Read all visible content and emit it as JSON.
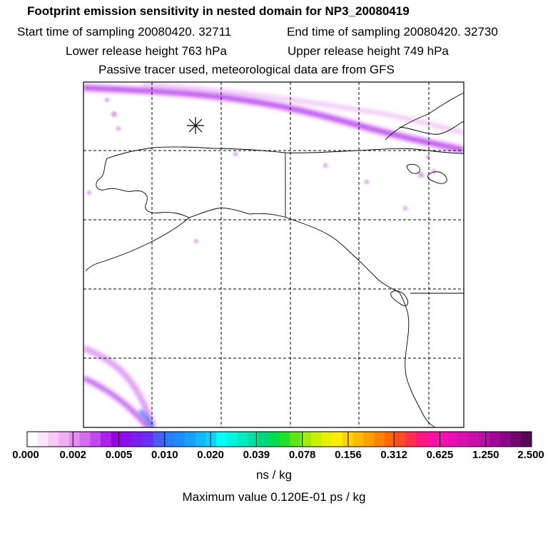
{
  "header": {
    "title": "Footprint emission sensitivity in nested domain for NP3_20080419",
    "start_time": "Start time of sampling 20080420. 32711",
    "end_time": "End time of sampling 20080420. 32730",
    "lower_release": "Lower release height  763 hPa",
    "upper_release": "Upper release height  749 hPa",
    "note": "Passive tracer used, meteorological data are from GFS"
  },
  "colorbar": {
    "labels": [
      "0.000",
      "0.002",
      "0.005",
      "0.010",
      "0.020",
      "0.039",
      "0.078",
      "0.156",
      "0.312",
      "0.625",
      "1.250",
      "2.500"
    ],
    "colors": [
      "#ffffff",
      "#fbe6fb",
      "#f6ccf6",
      "#eeb0f2",
      "#e38ff0",
      "#d46cee",
      "#c24aec",
      "#ad22ea",
      "#9800e8",
      "#8a10ee",
      "#7a1ff1",
      "#6a2ef4",
      "#4a5ef6",
      "#2a7ef9",
      "#1e8cfb",
      "#18a0fd",
      "#14b8fc",
      "#10d0fc",
      "#00ffff",
      "#00f4e0",
      "#00eac2",
      "#00e0a4",
      "#00d67e",
      "#00dd50",
      "#20e028",
      "#60e418",
      "#a0ec10",
      "#c8f000",
      "#e8f000",
      "#ffee00",
      "#ffd400",
      "#ffbc00",
      "#ffa000",
      "#ff8400",
      "#ff6800",
      "#ff4c20",
      "#ff3050",
      "#ff1880",
      "#ff10a0",
      "#f810b0",
      "#e810b4",
      "#d810b0",
      "#c810aa",
      "#b810a4",
      "#a00898",
      "#880888",
      "#700870",
      "#580858"
    ],
    "units": "ns / kg"
  },
  "footer": {
    "max_value": "Maximum value  0.120E-01 ps / kg"
  },
  "map": {
    "receptor_marker": "star-marker",
    "gridline_style": "dashed"
  }
}
